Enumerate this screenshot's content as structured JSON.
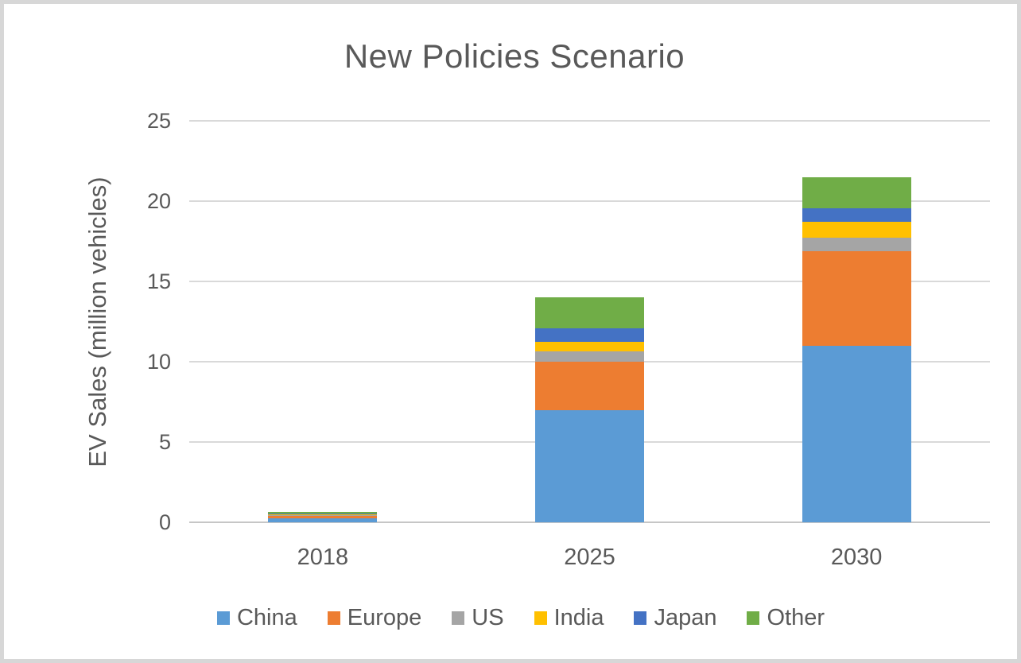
{
  "chart_data": {
    "type": "bar",
    "stacked": true,
    "title": "New Policies Scenario",
    "xlabel": "",
    "ylabel": "EV Sales (million vehicles)",
    "categories": [
      "2018",
      "2025",
      "2030"
    ],
    "series": [
      {
        "name": "China",
        "color": "#5B9BD5",
        "values": [
          0.25,
          7.0,
          11.0
        ]
      },
      {
        "name": "Europe",
        "color": "#ED7D31",
        "values": [
          0.15,
          3.0,
          5.9
        ]
      },
      {
        "name": "US",
        "color": "#A5A5A5",
        "values": [
          0.08,
          0.65,
          0.8
        ]
      },
      {
        "name": "India",
        "color": "#FFC000",
        "values": [
          0.02,
          0.6,
          1.0
        ]
      },
      {
        "name": "Japan",
        "color": "#4472C4",
        "values": [
          0.05,
          0.85,
          0.85
        ]
      },
      {
        "name": "Other",
        "color": "#70AD47",
        "values": [
          0.1,
          1.9,
          1.95
        ]
      }
    ],
    "totals": [
      0.65,
      14.0,
      21.5
    ],
    "y_ticks": [
      0,
      5,
      10,
      15,
      20,
      25
    ],
    "ylim": [
      0,
      25
    ],
    "grid": true,
    "legend_position": "bottom",
    "legend_entries": [
      "China",
      "Europe",
      "US",
      "India",
      "Japan",
      "Other"
    ]
  },
  "colors": {
    "grid": "#d9d9d9",
    "axis_line": "#c6c6c6",
    "text": "#595959",
    "frame_border": "#d7d7d7",
    "background": "#ffffff"
  }
}
